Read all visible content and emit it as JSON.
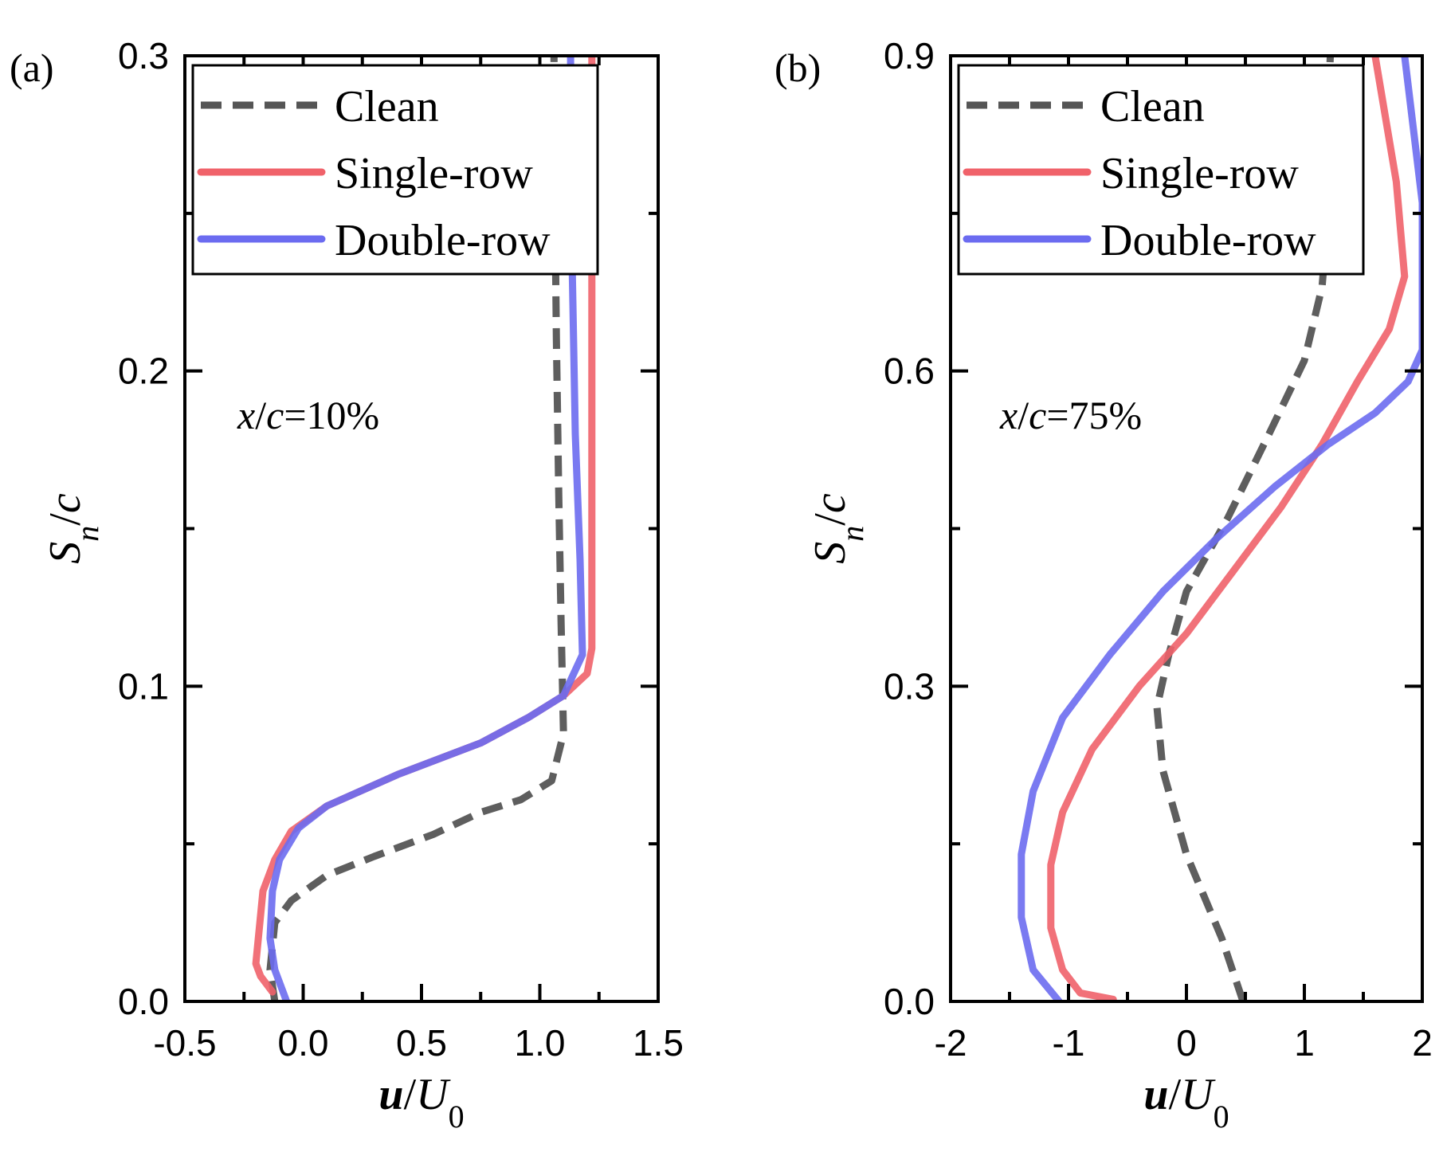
{
  "chart_data": [
    {
      "type": "line",
      "panel_label": "(a)",
      "annotation": {
        "prefix": "x",
        "mid": "/",
        "var": "c",
        "suffix": "=10%"
      },
      "xlabel": {
        "main": "u",
        "sep": "/",
        "sym": "U",
        "sub": "0"
      },
      "ylabel": {
        "main": "S",
        "sub": "n",
        "sep": "/",
        "sym": "c"
      },
      "xlim": [
        -0.5,
        1.5
      ],
      "ylim": [
        0.0,
        0.3
      ],
      "xticks": [
        -0.5,
        0.0,
        0.5,
        1.0,
        1.5
      ],
      "xtick_labels": [
        "-0.5",
        "0.0",
        "0.5",
        "1.0",
        "1.5"
      ],
      "yticks": [
        0.0,
        0.1,
        0.2,
        0.3
      ],
      "ytick_labels": [
        "0.0",
        "0.1",
        "0.2",
        "0.3"
      ],
      "legend_position": "top-left",
      "series": [
        {
          "name": "Clean",
          "color": "#555555",
          "style": "dashed",
          "points": [
            [
              -0.12,
              0.0
            ],
            [
              -0.14,
              0.01
            ],
            [
              -0.12,
              0.025
            ],
            [
              -0.05,
              0.032
            ],
            [
              0.1,
              0.04
            ],
            [
              0.3,
              0.046
            ],
            [
              0.55,
              0.053
            ],
            [
              0.75,
              0.06
            ],
            [
              0.92,
              0.064
            ],
            [
              1.05,
              0.07
            ],
            [
              1.1,
              0.085
            ],
            [
              1.09,
              0.12
            ],
            [
              1.08,
              0.16
            ],
            [
              1.07,
              0.21
            ],
            [
              1.06,
              0.28
            ],
            [
              1.06,
              0.3
            ]
          ]
        },
        {
          "name": "Single-row",
          "color": "#f0626a",
          "style": "solid",
          "points": [
            [
              -0.13,
              0.003
            ],
            [
              -0.18,
              0.008
            ],
            [
              -0.2,
              0.012
            ],
            [
              -0.17,
              0.035
            ],
            [
              -0.12,
              0.045
            ],
            [
              -0.05,
              0.054
            ],
            [
              0.1,
              0.062
            ],
            [
              0.4,
              0.072
            ],
            [
              0.75,
              0.082
            ],
            [
              0.95,
              0.09
            ],
            [
              1.1,
              0.097
            ],
            [
              1.2,
              0.104
            ],
            [
              1.22,
              0.112
            ],
            [
              1.22,
              0.15
            ],
            [
              1.22,
              0.2
            ],
            [
              1.22,
              0.25
            ],
            [
              1.22,
              0.3
            ]
          ]
        },
        {
          "name": "Double-row",
          "color": "#6b6bf0",
          "style": "solid",
          "points": [
            [
              -0.07,
              0.0
            ],
            [
              -0.12,
              0.01
            ],
            [
              -0.14,
              0.02
            ],
            [
              -0.13,
              0.035
            ],
            [
              -0.1,
              0.045
            ],
            [
              -0.02,
              0.055
            ],
            [
              0.1,
              0.062
            ],
            [
              0.4,
              0.072
            ],
            [
              0.75,
              0.082
            ],
            [
              0.95,
              0.09
            ],
            [
              1.1,
              0.097
            ],
            [
              1.18,
              0.11
            ],
            [
              1.17,
              0.14
            ],
            [
              1.15,
              0.18
            ],
            [
              1.14,
              0.22
            ],
            [
              1.13,
              0.26
            ],
            [
              1.13,
              0.3
            ]
          ]
        }
      ]
    },
    {
      "type": "line",
      "panel_label": "(b)",
      "annotation": {
        "prefix": "x",
        "mid": "/",
        "var": "c",
        "suffix": "=75%"
      },
      "xlabel": {
        "main": "u",
        "sep": "/",
        "sym": "U",
        "sub": "0"
      },
      "ylabel": {
        "main": "S",
        "sub": "n",
        "sep": "/",
        "sym": "c"
      },
      "xlim": [
        -2,
        2
      ],
      "ylim": [
        0.0,
        0.9
      ],
      "xticks": [
        -2,
        -1,
        0,
        1,
        2
      ],
      "xtick_labels": [
        "-2",
        "-1",
        "0",
        "1",
        "2"
      ],
      "yticks": [
        0.0,
        0.3,
        0.6,
        0.9
      ],
      "ytick_labels": [
        "0.0",
        "0.3",
        "0.6",
        "0.9"
      ],
      "legend_position": "top-left",
      "series": [
        {
          "name": "Clean",
          "color": "#555555",
          "style": "dashed",
          "points": [
            [
              0.48,
              0.0
            ],
            [
              0.3,
              0.06
            ],
            [
              0.0,
              0.14
            ],
            [
              -0.2,
              0.22
            ],
            [
              -0.25,
              0.28
            ],
            [
              -0.15,
              0.33
            ],
            [
              0.0,
              0.39
            ],
            [
              0.35,
              0.46
            ],
            [
              0.7,
              0.54
            ],
            [
              1.0,
              0.61
            ],
            [
              1.15,
              0.68
            ],
            [
              1.18,
              0.72
            ],
            [
              1.2,
              0.85
            ],
            [
              1.22,
              0.9
            ]
          ]
        },
        {
          "name": "Single-row",
          "color": "#f0626a",
          "style": "solid",
          "points": [
            [
              -0.62,
              0.002
            ],
            [
              -0.9,
              0.008
            ],
            [
              -1.05,
              0.03
            ],
            [
              -1.15,
              0.07
            ],
            [
              -1.15,
              0.13
            ],
            [
              -1.05,
              0.18
            ],
            [
              -0.8,
              0.24
            ],
            [
              -0.4,
              0.3
            ],
            [
              0.0,
              0.35
            ],
            [
              0.4,
              0.41
            ],
            [
              0.8,
              0.47
            ],
            [
              1.15,
              0.53
            ],
            [
              1.45,
              0.59
            ],
            [
              1.72,
              0.64
            ],
            [
              1.85,
              0.69
            ],
            [
              1.78,
              0.78
            ],
            [
              1.6,
              0.9
            ]
          ]
        },
        {
          "name": "Double-row",
          "color": "#6b6bf0",
          "style": "solid",
          "points": [
            [
              -1.08,
              0.0
            ],
            [
              -1.3,
              0.03
            ],
            [
              -1.4,
              0.08
            ],
            [
              -1.4,
              0.14
            ],
            [
              -1.3,
              0.2
            ],
            [
              -1.05,
              0.27
            ],
            [
              -0.65,
              0.33
            ],
            [
              -0.2,
              0.39
            ],
            [
              0.25,
              0.44
            ],
            [
              0.75,
              0.49
            ],
            [
              1.2,
              0.53
            ],
            [
              1.6,
              0.56
            ],
            [
              1.88,
              0.59
            ],
            [
              2.0,
              0.62
            ],
            [
              2.0,
              0.76
            ],
            [
              1.85,
              0.9
            ]
          ]
        }
      ]
    }
  ]
}
